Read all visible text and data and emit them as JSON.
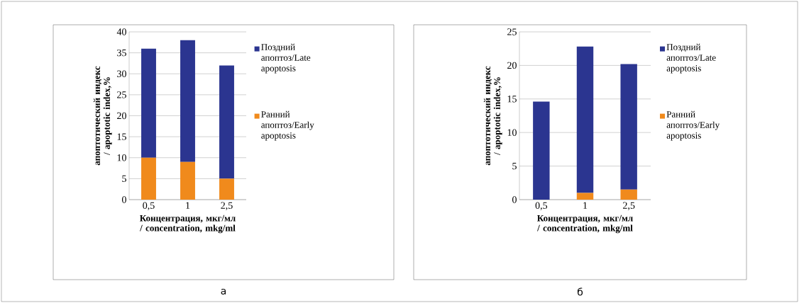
{
  "chart_data": [
    {
      "type": "bar",
      "stacked": true,
      "categories": [
        "0,5",
        "1",
        "2,5"
      ],
      "series": [
        {
          "name": "Ранний апоптоз/Early apoptosis",
          "color": "#f08a1c",
          "values": [
            10,
            9,
            5
          ]
        },
        {
          "name": "Поздний апоптоз/Late apoptosis",
          "color": "#2b3590",
          "values": [
            26,
            29,
            27
          ]
        }
      ],
      "ylim": [
        0,
        40
      ],
      "yticks": [
        0,
        5,
        10,
        15,
        20,
        25,
        30,
        35,
        40
      ],
      "grid": "y",
      "legend": "right",
      "xlabel": "Концентрация, мкг/мл / concentration, mkg/ml",
      "ylabel": "апоптотический индекс / apoptotic index,%",
      "annotations": [
        "а"
      ]
    },
    {
      "type": "bar",
      "stacked": true,
      "categories": [
        "0,5",
        "1",
        "2,5"
      ],
      "series": [
        {
          "name": "Ранний апоптоз/Early apoptosis",
          "color": "#f08a1c",
          "values": [
            0,
            1,
            1.5
          ]
        },
        {
          "name": "Поздний апоптоз/Late apoptosis",
          "color": "#2b3590",
          "values": [
            14.6,
            21.8,
            18.7
          ]
        }
      ],
      "ylim": [
        0,
        25
      ],
      "yticks": [
        0,
        5,
        10,
        15,
        20,
        25
      ],
      "grid": "y",
      "legend": "right",
      "xlabel": "Концентрация, мкг/мл / concentration, mkg/ml",
      "ylabel": "апоптотический индекс / apoptotic index,%",
      "annotations": [
        "б"
      ]
    }
  ]
}
